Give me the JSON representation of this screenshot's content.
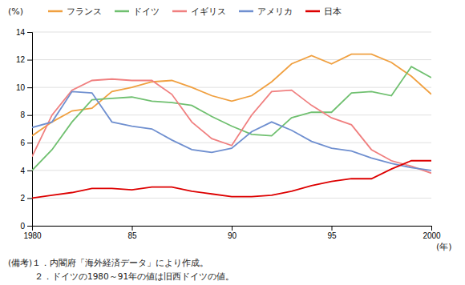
{
  "chart_data": {
    "type": "line",
    "y_label": "(%)",
    "x_label": "(年)",
    "annotations": [
      "(備考)１．内閣府「海外経済データ」により作成。",
      "　　　２．ドイツの1980～91年の値は旧西ドイツの値。"
    ],
    "x": [
      1980,
      1981,
      1982,
      1983,
      1984,
      1985,
      1986,
      1987,
      1988,
      1989,
      1990,
      1991,
      1992,
      1993,
      1994,
      1995,
      1996,
      1997,
      1998,
      1999,
      2000
    ],
    "series": [
      {
        "name": "フランス",
        "color": "#F0A040",
        "values": [
          6.5,
          7.5,
          8.3,
          8.5,
          9.7,
          10.0,
          10.4,
          10.5,
          10.0,
          9.4,
          9.0,
          9.4,
          10.4,
          11.7,
          12.3,
          11.7,
          12.4,
          12.4,
          11.8,
          10.8,
          9.5
        ]
      },
      {
        "name": "ドイツ",
        "color": "#70C070",
        "values": [
          4.0,
          5.5,
          7.5,
          9.1,
          9.2,
          9.3,
          9.0,
          8.9,
          8.7,
          7.9,
          7.2,
          6.6,
          6.5,
          7.8,
          8.2,
          8.2,
          9.6,
          9.7,
          9.4,
          11.5,
          10.7
        ]
      },
      {
        "name": "イギリス",
        "color": "#F08080",
        "values": [
          5.0,
          8.0,
          9.8,
          10.5,
          10.6,
          10.5,
          10.5,
          9.5,
          7.5,
          6.3,
          5.8,
          8.0,
          9.7,
          9.8,
          8.7,
          7.8,
          7.3,
          5.5,
          4.7,
          4.3,
          3.8
        ]
      },
      {
        "name": "アメリカ",
        "color": "#7090D0",
        "values": [
          7.1,
          7.5,
          9.7,
          9.6,
          7.5,
          7.2,
          7.0,
          6.2,
          5.5,
          5.3,
          5.6,
          6.8,
          7.5,
          6.9,
          6.1,
          5.6,
          5.4,
          4.9,
          4.5,
          4.2,
          4.0
        ]
      },
      {
        "name": "日本",
        "color": "#DD0000",
        "values": [
          2.0,
          2.2,
          2.4,
          2.7,
          2.7,
          2.6,
          2.8,
          2.8,
          2.5,
          2.3,
          2.1,
          2.1,
          2.2,
          2.5,
          2.9,
          3.2,
          3.4,
          3.4,
          4.1,
          4.7,
          4.7
        ]
      }
    ],
    "xlim": [
      1980,
      2000
    ],
    "ylim": [
      0,
      14
    ],
    "xticks": [
      1980,
      {
        "value": 1985,
        "label": "85"
      },
      {
        "value": 1990,
        "label": "90"
      },
      {
        "value": 1995,
        "label": "95"
      },
      2000
    ],
    "yticks": [
      0,
      2,
      4,
      6,
      8,
      10,
      12,
      14
    ],
    "grid": true,
    "legend": "upper left"
  }
}
